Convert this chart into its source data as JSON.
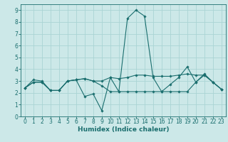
{
  "xlabel": "Humidex (Indice chaleur)",
  "ylabel": "",
  "background_color": "#cce8e8",
  "grid_color": "#aad4d4",
  "line_color": "#1a6e6e",
  "xlim": [
    -0.5,
    23.5
  ],
  "ylim": [
    0,
    9.5
  ],
  "xticks": [
    0,
    1,
    2,
    3,
    4,
    5,
    6,
    7,
    8,
    9,
    10,
    11,
    12,
    13,
    14,
    15,
    16,
    17,
    18,
    19,
    20,
    21,
    22,
    23
  ],
  "yticks": [
    0,
    1,
    2,
    3,
    4,
    5,
    6,
    7,
    8,
    9
  ],
  "series": [
    [
      2.4,
      3.1,
      3.0,
      2.2,
      2.2,
      3.0,
      3.1,
      1.7,
      1.9,
      0.5,
      3.3,
      2.1,
      8.3,
      9.0,
      8.5,
      3.3,
      2.1,
      2.7,
      3.3,
      4.2,
      2.9,
      3.6,
      2.9,
      2.3
    ],
    [
      2.4,
      2.9,
      2.9,
      2.2,
      2.2,
      3.0,
      3.1,
      3.2,
      3.0,
      3.0,
      3.3,
      3.2,
      3.3,
      3.5,
      3.5,
      3.4,
      3.4,
      3.4,
      3.5,
      3.6,
      3.5,
      3.5,
      2.9,
      2.3
    ],
    [
      2.4,
      2.9,
      2.9,
      2.2,
      2.2,
      3.0,
      3.1,
      3.2,
      3.0,
      2.6,
      2.1,
      2.1,
      2.1,
      2.1,
      2.1,
      2.1,
      2.1,
      2.1,
      2.1,
      2.1,
      2.9,
      3.5,
      2.9,
      2.3
    ]
  ],
  "tick_fontsize": 5.5,
  "xlabel_fontsize": 6.5
}
